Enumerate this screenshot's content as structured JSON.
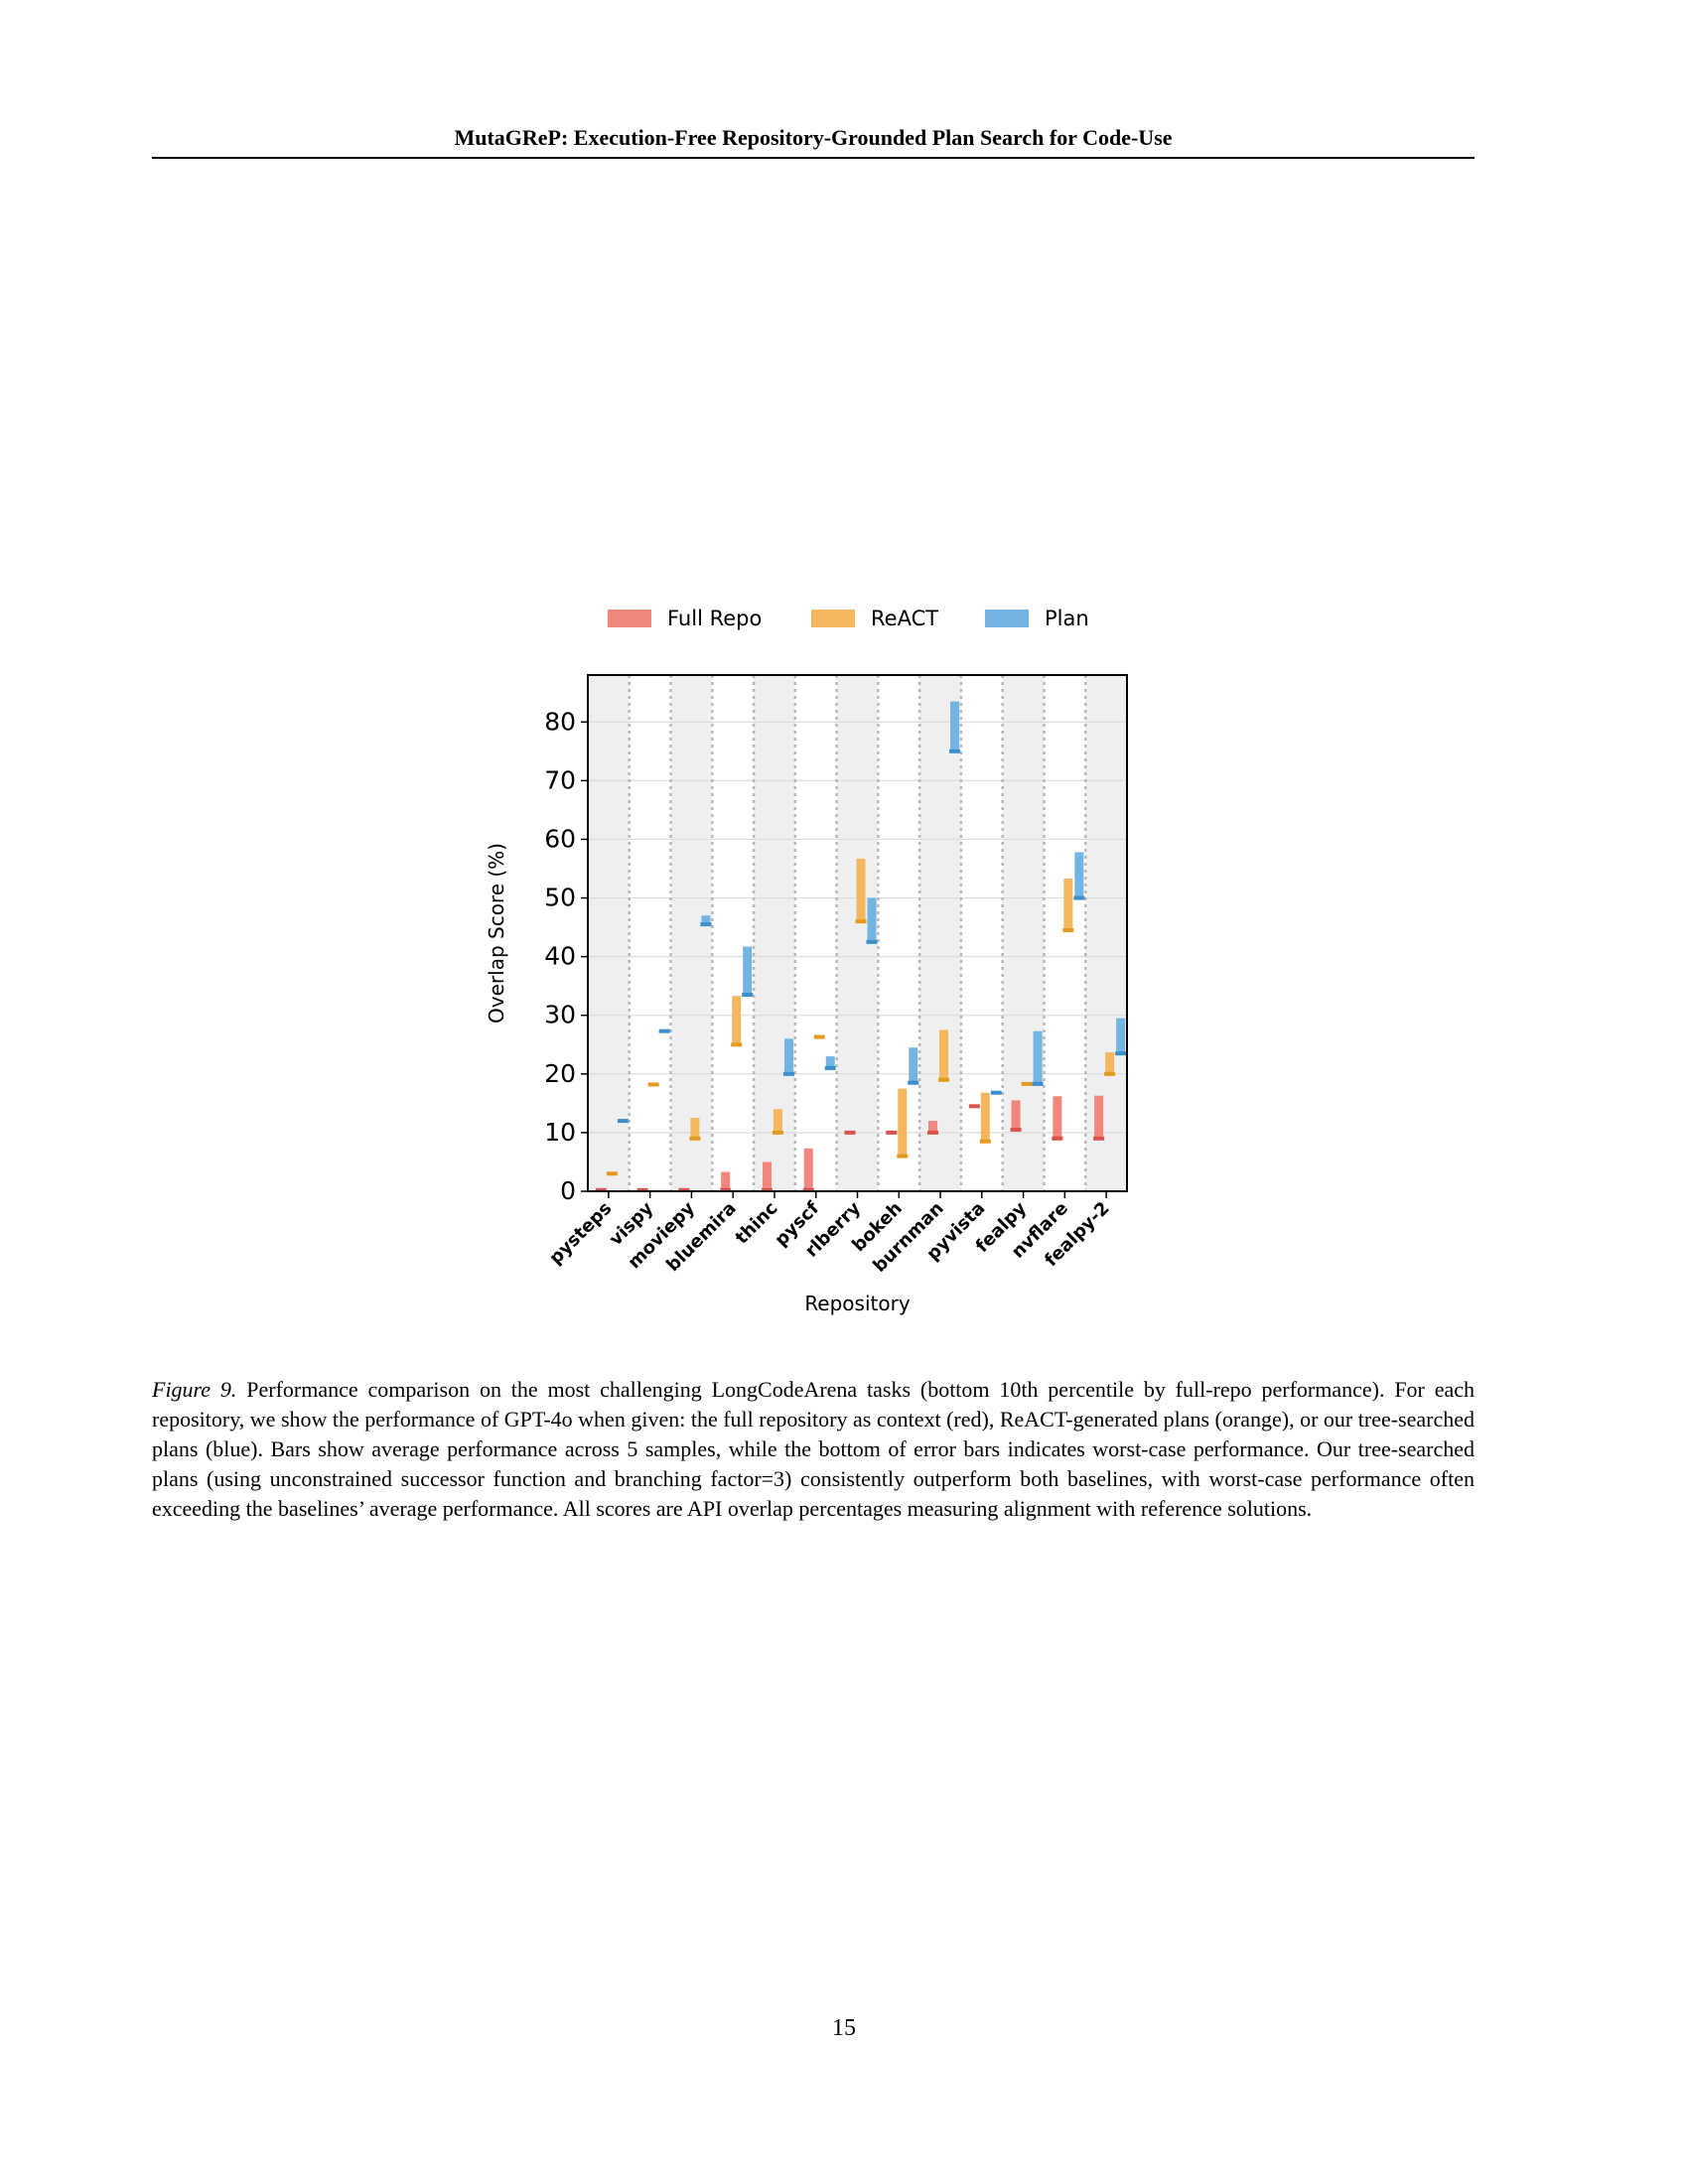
{
  "header": {
    "title": "MutaGReP: Execution-Free Repository-Grounded Plan Search for Code-Use"
  },
  "caption": {
    "label": "Figure 9.",
    "text": "Performance comparison on the most challenging LongCodeArena tasks (bottom 10th percentile by full-repo performance). For each repository, we show the performance of GPT-4o when given: the full repository as context (red), ReACT-generated plans (orange), or our tree-searched plans (blue). Bars show average performance across 5 samples, while the bottom of error bars indicates worst-case performance. Our tree-searched plans (using unconstrained successor function and branching factor=3) consistently outperform both baselines, with worst-case performance often exceeding the baselines’ average performance. All scores are API overlap percentages measuring alignment with reference solutions."
  },
  "page_number": "15",
  "colors": {
    "full_repo": "#f0867c",
    "full_repo_dark": "#d9534a",
    "react": "#f5b75e",
    "react_dark": "#e59a1f",
    "plan": "#72b5e2",
    "plan_dark": "#3a8fcc",
    "shade": "#efefef"
  },
  "chart_data": {
    "type": "bar",
    "xlabel": "Repository",
    "ylabel": "Overlap Score (%)",
    "ylim": [
      0,
      88
    ],
    "yticks": [
      0,
      10,
      20,
      30,
      40,
      50,
      60,
      70,
      80
    ],
    "grid": true,
    "legend_position": "top",
    "categories": [
      "pysteps",
      "vispy",
      "moviepy",
      "bluemira",
      "thinc",
      "pyscf",
      "rlberry",
      "bokeh",
      "burnman",
      "pyvista",
      "fealpy",
      "nvflare",
      "fealpy-2"
    ],
    "series": [
      {
        "name": "Full Repo",
        "color_key": "full_repo",
        "values": [
          0.2,
          0.2,
          0.2,
          3.3,
          5.0,
          7.3,
          10.0,
          10.0,
          12.0,
          14.5,
          15.5,
          16.2,
          16.3
        ],
        "worst": [
          0.2,
          0.2,
          0.2,
          0.2,
          0.2,
          0.2,
          10.0,
          10.0,
          10.0,
          14.5,
          10.5,
          9.0,
          9.0
        ]
      },
      {
        "name": "ReACT",
        "color_key": "react",
        "values": [
          3.0,
          18.2,
          12.5,
          33.3,
          14.0,
          26.3,
          56.7,
          17.5,
          27.5,
          16.8,
          18.3,
          53.3,
          23.7
        ],
        "worst": [
          3.0,
          18.2,
          9.0,
          25.0,
          10.0,
          26.3,
          46.0,
          6.0,
          19.0,
          8.5,
          18.3,
          44.5,
          20.0
        ]
      },
      {
        "name": "Plan",
        "color_key": "plan",
        "values": [
          12.0,
          27.3,
          47.0,
          41.7,
          26.0,
          23.0,
          50.0,
          24.5,
          83.5,
          16.8,
          27.3,
          57.8,
          29.5
        ],
        "worst": [
          12.0,
          27.3,
          45.5,
          33.5,
          20.0,
          21.0,
          42.5,
          18.5,
          75.0,
          16.8,
          18.3,
          50.0,
          23.5
        ]
      }
    ]
  }
}
